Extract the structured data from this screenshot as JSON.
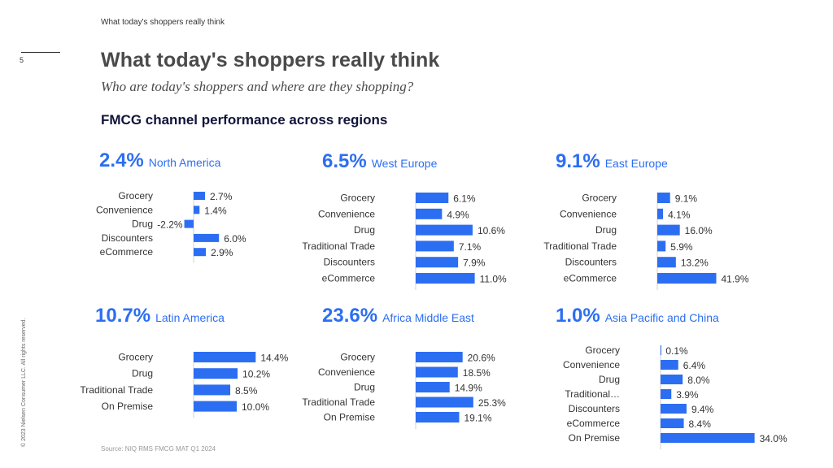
{
  "page": {
    "top_label": "What today's shoppers really think",
    "page_number": "5",
    "title": "What today's shoppers really think",
    "subtitle": "Who are today's shoppers and where are they shopping?",
    "section_title": "FMCG channel performance across regions",
    "copyright": "© 2023 Nielsen Consumer LLC. All rights reserved.",
    "source": "Source: NIQ RMS FMCG MAT Q1 2024"
  },
  "colors": {
    "accent": "#2c6ef2",
    "headline": "#2c6ef2",
    "text": "#333333"
  },
  "chart_data": [
    {
      "type": "bar",
      "region": "North America",
      "headline": "2.4%",
      "categories": [
        "Grocery",
        "Convenience",
        "Drug",
        "Discounters",
        "eCommerce"
      ],
      "values": [
        2.7,
        1.4,
        -2.2,
        6.0,
        2.9
      ],
      "labels": [
        "2.7%",
        "1.4%",
        "-2.2%",
        "6.0%",
        "2.9%"
      ]
    },
    {
      "type": "bar",
      "region": "West Europe",
      "headline": "6.5%",
      "categories": [
        "Grocery",
        "Convenience",
        "Drug",
        "Traditional Trade",
        "Discounters",
        "eCommerce"
      ],
      "values": [
        6.1,
        4.9,
        10.6,
        7.1,
        7.9,
        11.0
      ],
      "labels": [
        "6.1%",
        "4.9%",
        "10.6%",
        "7.1%",
        "7.9%",
        "11.0%"
      ]
    },
    {
      "type": "bar",
      "region": "East Europe",
      "headline": "9.1%",
      "categories": [
        "Grocery",
        "Convenience",
        "Drug",
        "Traditional Trade",
        "Discounters",
        "eCommerce"
      ],
      "values": [
        9.1,
        4.1,
        16.0,
        5.9,
        13.2,
        41.9
      ],
      "labels": [
        "9.1%",
        "4.1%",
        "16.0%",
        "5.9%",
        "13.2%",
        "41.9%"
      ]
    },
    {
      "type": "bar",
      "region": "Latin America",
      "headline": "10.7%",
      "categories": [
        "Grocery",
        "Drug",
        "Traditional Trade",
        "On Premise"
      ],
      "values": [
        14.4,
        10.2,
        8.5,
        10.0
      ],
      "labels": [
        "14.4%",
        "10.2%",
        "8.5%",
        "10.0%"
      ]
    },
    {
      "type": "bar",
      "region": "Africa Middle East",
      "headline": "23.6%",
      "categories": [
        "Grocery",
        "Convenience",
        "Drug",
        "Traditional Trade",
        "On Premise"
      ],
      "values": [
        20.6,
        18.5,
        14.9,
        25.3,
        19.1
      ],
      "labels": [
        "20.6%",
        "18.5%",
        "14.9%",
        "25.3%",
        "19.1%"
      ]
    },
    {
      "type": "bar",
      "region": "Asia Pacific and China",
      "headline": "1.0%",
      "categories": [
        "Grocery",
        "Convenience",
        "Drug",
        "Traditional…",
        "Discounters",
        "eCommerce",
        "On Premise"
      ],
      "values": [
        0.1,
        6.4,
        8.0,
        3.9,
        9.4,
        8.4,
        34.0
      ],
      "labels": [
        "0.1%",
        "6.4%",
        "8.0%",
        "3.9%",
        "9.4%",
        "8.4%",
        "34.0%"
      ]
    }
  ]
}
